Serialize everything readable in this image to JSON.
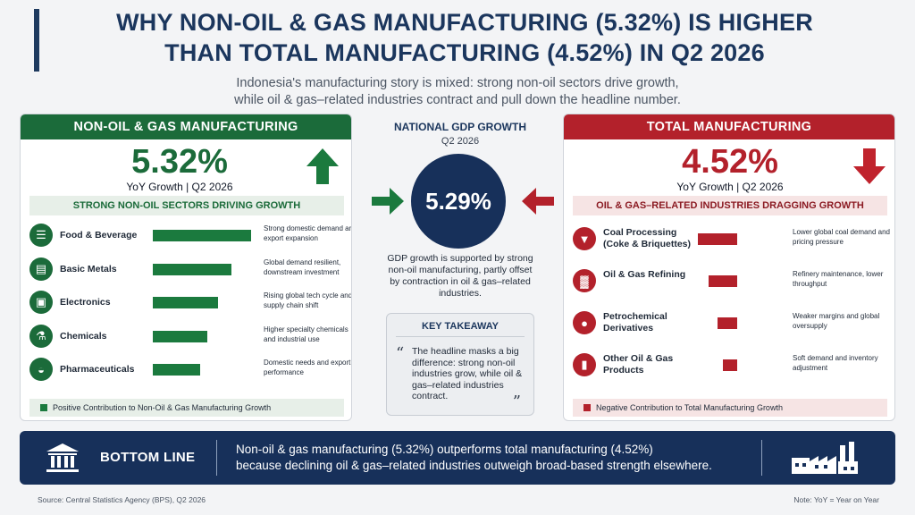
{
  "title_line1": "WHY NON-OIL & GAS MANUFACTURING (5.32%) IS HIGHER",
  "title_line2": "THAN TOTAL MANUFACTURING (4.52%) IN Q2 2026",
  "subtitle_line1": "Indonesia's manufacturing story is mixed: strong non-oil sectors drive growth,",
  "subtitle_line2": "while oil & gas–related industries contract and pull down the headline number.",
  "colors": {
    "green": "#1b6b3a",
    "red": "#b3212b",
    "navy": "#17305a"
  },
  "left": {
    "header": "NON-OIL & GAS MANUFACTURING",
    "value": "5.32%",
    "value_sub": "YoY Growth | Q2 2026",
    "arrow_icon": "arrow-up-icon",
    "section": "STRONG NON-OIL SECTORS DRIVING GROWTH",
    "rows": [
      {
        "icon": "utensils-icon",
        "label": "Food & Beverage",
        "note": "Strong domestic demand and export expansion",
        "bar": 1.0
      },
      {
        "icon": "metal-bars-icon",
        "label": "Basic Metals",
        "note": "Global demand resilient, downstream investment",
        "bar": 0.8
      },
      {
        "icon": "chip-icon",
        "label": "Electronics",
        "note": "Rising global tech cycle and supply chain shift",
        "bar": 0.66
      },
      {
        "icon": "flask-icon",
        "label": "Chemicals",
        "note": "Higher specialty chemicals and industrial use",
        "bar": 0.55
      },
      {
        "icon": "pill-icon",
        "label": "Pharmaceuticals",
        "note": "Domestic needs and export performance",
        "bar": 0.48
      }
    ],
    "legend": "Positive Contribution to Non-Oil & Gas Manufacturing Growth"
  },
  "center": {
    "head": "NATIONAL GDP GROWTH",
    "sub": "Q2 2026",
    "value": "5.29%",
    "text": "GDP growth is supported by strong non-oil manufacturing, partly offset by contraction in oil & gas–related industries.",
    "takeaway_head": "KEY TAKEAWAY",
    "takeaway_text": "The headline masks a big difference: strong non-oil industries grow, while oil & gas–related industries contract.",
    "open_quote": "“",
    "close_quote": "”"
  },
  "right": {
    "header": "TOTAL MANUFACTURING",
    "value": "4.52%",
    "value_sub": "YoY Growth | Q2 2026",
    "arrow_icon": "arrow-down-icon",
    "section": "OIL & GAS–RELATED INDUSTRIES DRAGGING GROWTH",
    "rows": [
      {
        "icon": "mine-cart-icon",
        "label": "Coal Processing (Coke & Briquettes)",
        "note": "Lower global coal demand and pricing pressure",
        "bar": 1.0
      },
      {
        "icon": "refinery-icon",
        "label": "Oil & Gas Refining",
        "note": "Refinery maintenance, lower throughput",
        "bar": 0.72
      },
      {
        "icon": "droplet-icon",
        "label": "Petrochemical Derivatives",
        "note": "Weaker margins and global oversupply",
        "bar": 0.5
      },
      {
        "icon": "fuel-pump-icon",
        "label": "Other Oil & Gas Products",
        "note": "Soft demand and inventory adjustment",
        "bar": 0.36
      }
    ],
    "legend": "Negative Contribution to Total Manufacturing Growth"
  },
  "bottom": {
    "label": "BOTTOM LINE",
    "text_line1": "Non-oil & gas manufacturing (5.32%) outperforms total manufacturing (4.52%)",
    "text_line2": "because declining oil & gas–related industries outweigh broad-based strength elsewhere."
  },
  "source": "Source: Central Statistics Agency (BPS), Q2 2026",
  "footnote": "Note: YoY = Year on Year"
}
